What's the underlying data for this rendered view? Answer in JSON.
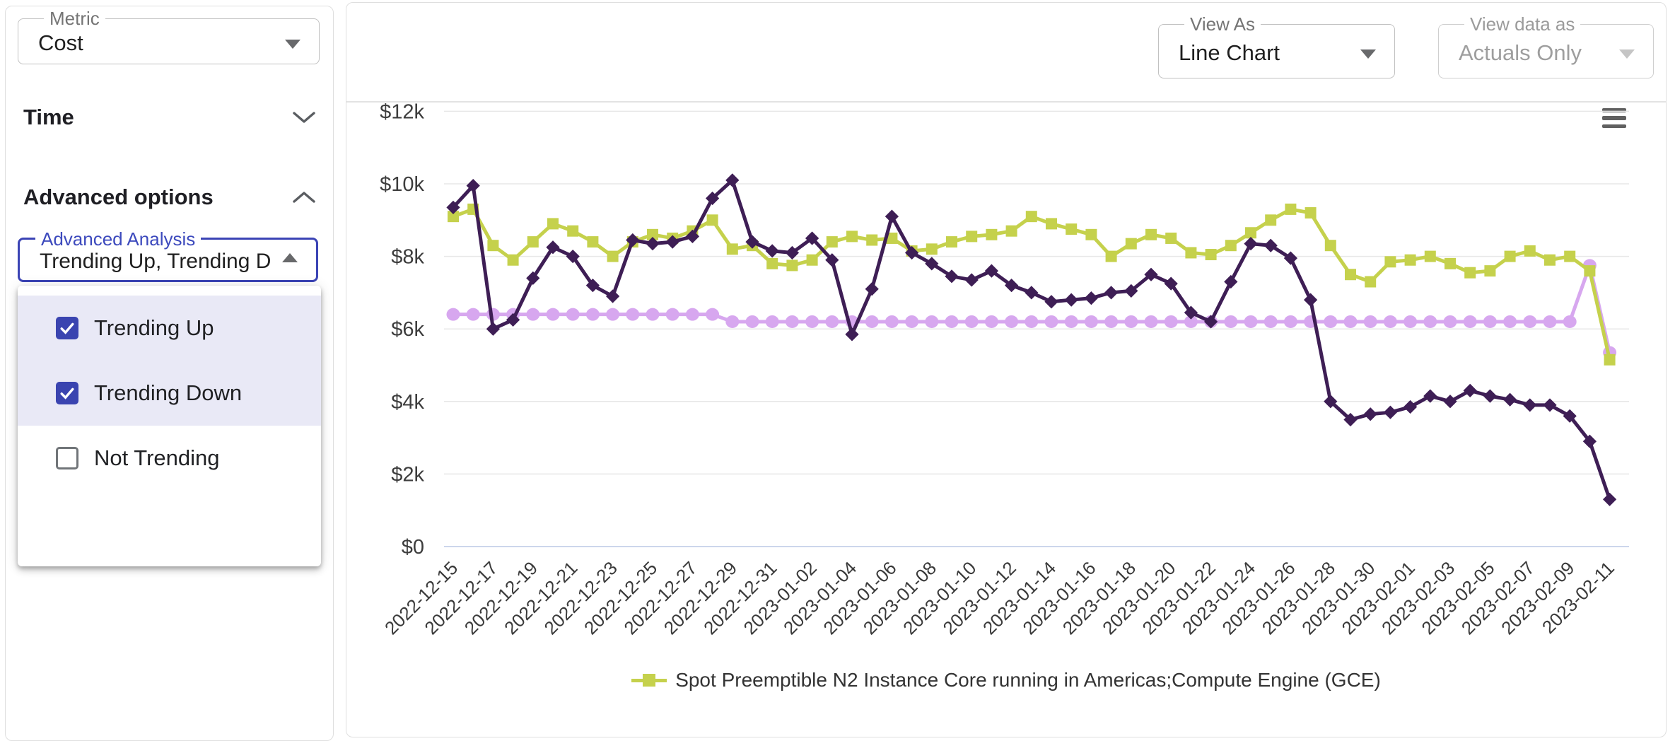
{
  "sidebar": {
    "metric_select": {
      "label": "Metric",
      "value": "Cost"
    },
    "sections": [
      {
        "label": "Time",
        "state": "collapsed"
      },
      {
        "label": "Advanced options",
        "state": "expanded"
      }
    ],
    "advanced_analysis": {
      "label": "Advanced Analysis",
      "value": "Trending Up, Trending D...",
      "options": [
        {
          "label": "Trending Up",
          "checked": true
        },
        {
          "label": "Trending Down",
          "checked": true
        },
        {
          "label": "Not Trending",
          "checked": false
        }
      ]
    }
  },
  "toolbar": {
    "view_as": {
      "label": "View As",
      "value": "Line Chart",
      "disabled": false
    },
    "view_data_as": {
      "label": "View data as",
      "value": "Actuals Only",
      "disabled": true
    }
  },
  "chart_data": {
    "type": "line",
    "ylim": [
      0,
      12000
    ],
    "grid": true,
    "legend_position": "bottom-center",
    "yticks": [
      {
        "value": 0,
        "label": "$0"
      },
      {
        "value": 2000,
        "label": "$2k"
      },
      {
        "value": 4000,
        "label": "$4k"
      },
      {
        "value": 6000,
        "label": "$6k"
      },
      {
        "value": 8000,
        "label": "$8k"
      },
      {
        "value": 10000,
        "label": "$10k"
      },
      {
        "value": 12000,
        "label": "$12k"
      }
    ],
    "x_tick_every": 2,
    "x": [
      "2022-12-15",
      "2022-12-16",
      "2022-12-17",
      "2022-12-18",
      "2022-12-19",
      "2022-12-20",
      "2022-12-21",
      "2022-12-22",
      "2022-12-23",
      "2022-12-24",
      "2022-12-25",
      "2022-12-26",
      "2022-12-27",
      "2022-12-28",
      "2022-12-29",
      "2022-12-30",
      "2022-12-31",
      "2023-01-01",
      "2023-01-02",
      "2023-01-03",
      "2023-01-04",
      "2023-01-05",
      "2023-01-06",
      "2023-01-07",
      "2023-01-08",
      "2023-01-09",
      "2023-01-10",
      "2023-01-11",
      "2023-01-12",
      "2023-01-13",
      "2023-01-14",
      "2023-01-15",
      "2023-01-16",
      "2023-01-17",
      "2023-01-18",
      "2023-01-19",
      "2023-01-20",
      "2023-01-21",
      "2023-01-22",
      "2023-01-23",
      "2023-01-24",
      "2023-01-25",
      "2023-01-26",
      "2023-01-27",
      "2023-01-28",
      "2023-01-29",
      "2023-01-30",
      "2023-01-31",
      "2023-02-01",
      "2023-02-02",
      "2023-02-03",
      "2023-02-04",
      "2023-02-05",
      "2023-02-06",
      "2023-02-07",
      "2023-02-08",
      "2023-02-09",
      "2023-02-10",
      "2023-02-11"
    ],
    "series": [
      {
        "label": "",
        "legend": false,
        "color": "#d7a7ef",
        "marker": "circle",
        "values": [
          6400,
          6400,
          6400,
          6400,
          6400,
          6400,
          6400,
          6400,
          6400,
          6400,
          6400,
          6400,
          6400,
          6400,
          6200,
          6200,
          6200,
          6200,
          6200,
          6200,
          6200,
          6200,
          6200,
          6200,
          6200,
          6200,
          6200,
          6200,
          6200,
          6200,
          6200,
          6200,
          6200,
          6200,
          6200,
          6200,
          6200,
          6200,
          6200,
          6200,
          6200,
          6200,
          6200,
          6200,
          6200,
          6200,
          6200,
          6200,
          6200,
          6200,
          6200,
          6200,
          6200,
          6200,
          6200,
          6200,
          6200,
          7750,
          5350
        ]
      },
      {
        "label": "Spot Preemptible N2 Instance Core running in Americas;Compute Engine (GCE)",
        "legend": true,
        "color": "#c5d14c",
        "marker": "square",
        "values": [
          9100,
          9300,
          8300,
          7900,
          8400,
          8900,
          8700,
          8400,
          8000,
          8400,
          8600,
          8500,
          8700,
          9000,
          8200,
          8300,
          7800,
          7750,
          7900,
          8400,
          8550,
          8450,
          8500,
          8150,
          8200,
          8400,
          8550,
          8600,
          8700,
          9100,
          8900,
          8750,
          8600,
          8000,
          8350,
          8600,
          8500,
          8100,
          8050,
          8300,
          8650,
          9000,
          9300,
          9200,
          8300,
          7500,
          7300,
          7850,
          7900,
          8000,
          7800,
          7550,
          7600,
          8000,
          8150,
          7900,
          8000,
          7600,
          5150
        ]
      },
      {
        "label": "",
        "legend": false,
        "color": "#3e1e55",
        "marker": "diamond",
        "values": [
          9350,
          9950,
          6000,
          6250,
          7400,
          8250,
          8000,
          7200,
          6900,
          8450,
          8350,
          8400,
          8550,
          9600,
          10100,
          8400,
          8150,
          8100,
          8500,
          7900,
          5850,
          7100,
          9100,
          8100,
          7800,
          7450,
          7350,
          7600,
          7200,
          7000,
          6750,
          6800,
          6850,
          7000,
          7050,
          7500,
          7250,
          6450,
          6200,
          7300,
          8350,
          8300,
          7950,
          6800,
          4000,
          3500,
          3650,
          3700,
          3850,
          4150,
          4000,
          4300,
          4150,
          4050,
          3900,
          3900,
          3600,
          2900,
          1300
        ]
      }
    ]
  }
}
